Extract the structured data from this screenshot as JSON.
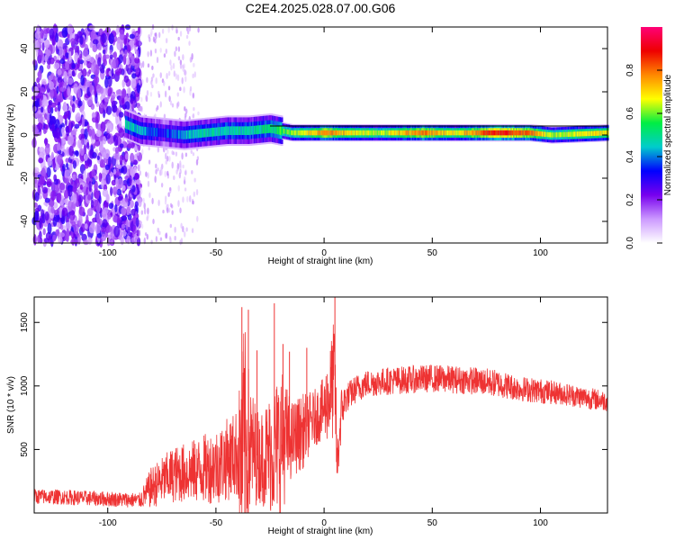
{
  "chart_data": [
    {
      "type": "heatmap",
      "title": "C2E4.2025.028.07.00.G06",
      "xlabel": "Height of straight line (km)",
      "ylabel": "Frequency (Hz)",
      "xlim": [
        -134,
        131
      ],
      "ylim": [
        -50,
        50
      ],
      "xticks": [
        "-100",
        "-50",
        "0",
        "50",
        "100"
      ],
      "yticks": [
        "-40",
        "-20",
        "0",
        "20",
        "40"
      ],
      "colorbar": {
        "label": "Normalized spectral amplitude",
        "range": [
          0,
          1
        ],
        "ticks": [
          "0.0",
          "0.2",
          "0.4",
          "0.6",
          "0.8"
        ],
        "colors": [
          "#ffffff",
          "#cc99ff",
          "#7700ee",
          "#0000ff",
          "#00cccc",
          "#00ee44",
          "#ffff00",
          "#ff8800",
          "#ee0000",
          "#ff0077"
        ]
      },
      "band": [
        {
          "x": -92,
          "f": 5,
          "amp": 0.5
        },
        {
          "x": -85,
          "f": 2,
          "amp": 0.45
        },
        {
          "x": -75,
          "f": 1,
          "amp": 0.35
        },
        {
          "x": -65,
          "f": 0,
          "amp": 0.45
        },
        {
          "x": -55,
          "f": 1,
          "amp": 0.5
        },
        {
          "x": -45,
          "f": 2,
          "amp": 0.5
        },
        {
          "x": -35,
          "f": 2,
          "amp": 0.5
        },
        {
          "x": -25,
          "f": 3,
          "amp": 0.55
        },
        {
          "x": -15,
          "f": 1,
          "amp": 0.65
        },
        {
          "x": -5,
          "f": 1,
          "amp": 0.75
        },
        {
          "x": 0,
          "f": 1,
          "amp": 0.85
        },
        {
          "x": 10,
          "f": 1,
          "amp": 0.75
        },
        {
          "x": 25,
          "f": 1,
          "amp": 0.65
        },
        {
          "x": 45,
          "f": 1,
          "amp": 0.85
        },
        {
          "x": 60,
          "f": 1,
          "amp": 0.7
        },
        {
          "x": 80,
          "f": 1,
          "amp": 0.95
        },
        {
          "x": 95,
          "f": 1,
          "amp": 0.85
        },
        {
          "x": 105,
          "f": 0,
          "amp": 0.65
        },
        {
          "x": 131,
          "f": 1,
          "amp": 0.75
        }
      ]
    },
    {
      "type": "line",
      "xlabel": "Height of straight line (km)",
      "ylabel": "SNR (10 * v/v)",
      "xlim": [
        -134,
        131
      ],
      "ylim": [
        0,
        1700
      ],
      "xticks": [
        "-100",
        "-50",
        "0",
        "50",
        "100"
      ],
      "yticks": [
        "500",
        "1000",
        "1500"
      ],
      "color": "#ee3333",
      "series": [
        {
          "x": [
            -134,
            -120,
            -100,
            -85,
            -80,
            -70,
            -60,
            -50,
            -40,
            -37,
            -34,
            -30,
            -24,
            -20,
            -15,
            -10,
            -5,
            0,
            3,
            5,
            6,
            8,
            10,
            15,
            20,
            30,
            40,
            50,
            60,
            70,
            80,
            90,
            100,
            110,
            120,
            131
          ],
          "mean": [
            130,
            125,
            110,
            100,
            200,
            300,
            330,
            370,
            470,
            430,
            520,
            430,
            480,
            560,
            580,
            640,
            740,
            820,
            950,
            1080,
            350,
            800,
            900,
            980,
            1020,
            1040,
            1050,
            1060,
            1050,
            1040,
            1020,
            980,
            960,
            940,
            910,
            880
          ],
          "spread": [
            60,
            60,
            60,
            60,
            160,
            220,
            250,
            300,
            350,
            1100,
            500,
            350,
            500,
            600,
            300,
            300,
            220,
            250,
            400,
            500,
            200,
            200,
            120,
            110,
            110,
            110,
            110,
            110,
            110,
            110,
            110,
            100,
            100,
            90,
            90,
            80
          ],
          "spikes": [
            {
              "x": -38,
              "y": 1620
            },
            {
              "x": -35,
              "y": 1600
            },
            {
              "x": -31,
              "y": 1280
            },
            {
              "x": -23,
              "y": 1650
            },
            {
              "x": -19,
              "y": 1330
            },
            {
              "x": -16,
              "y": 1270
            },
            {
              "x": -8,
              "y": 1300
            },
            {
              "x": 5,
              "y": 1700
            }
          ]
        }
      ]
    }
  ]
}
